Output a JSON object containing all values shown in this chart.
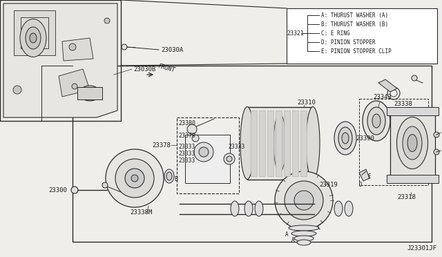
{
  "bg_color": "#f0eeea",
  "line_color": "#2a2a2a",
  "text_color": "#1a1a1a",
  "light_gray": "#d8d8d8",
  "mid_gray": "#b8b8b8",
  "dark_gray": "#888888",
  "legend_items": [
    "A: THURUST WASHER (A)",
    "B: THURUST WASHER (B)",
    "C: E RING",
    "D: PINION STOPPER",
    "E: PINION STOPPER CLIP"
  ],
  "diagram_ref": "J23301JF",
  "font_mono": "monospace"
}
